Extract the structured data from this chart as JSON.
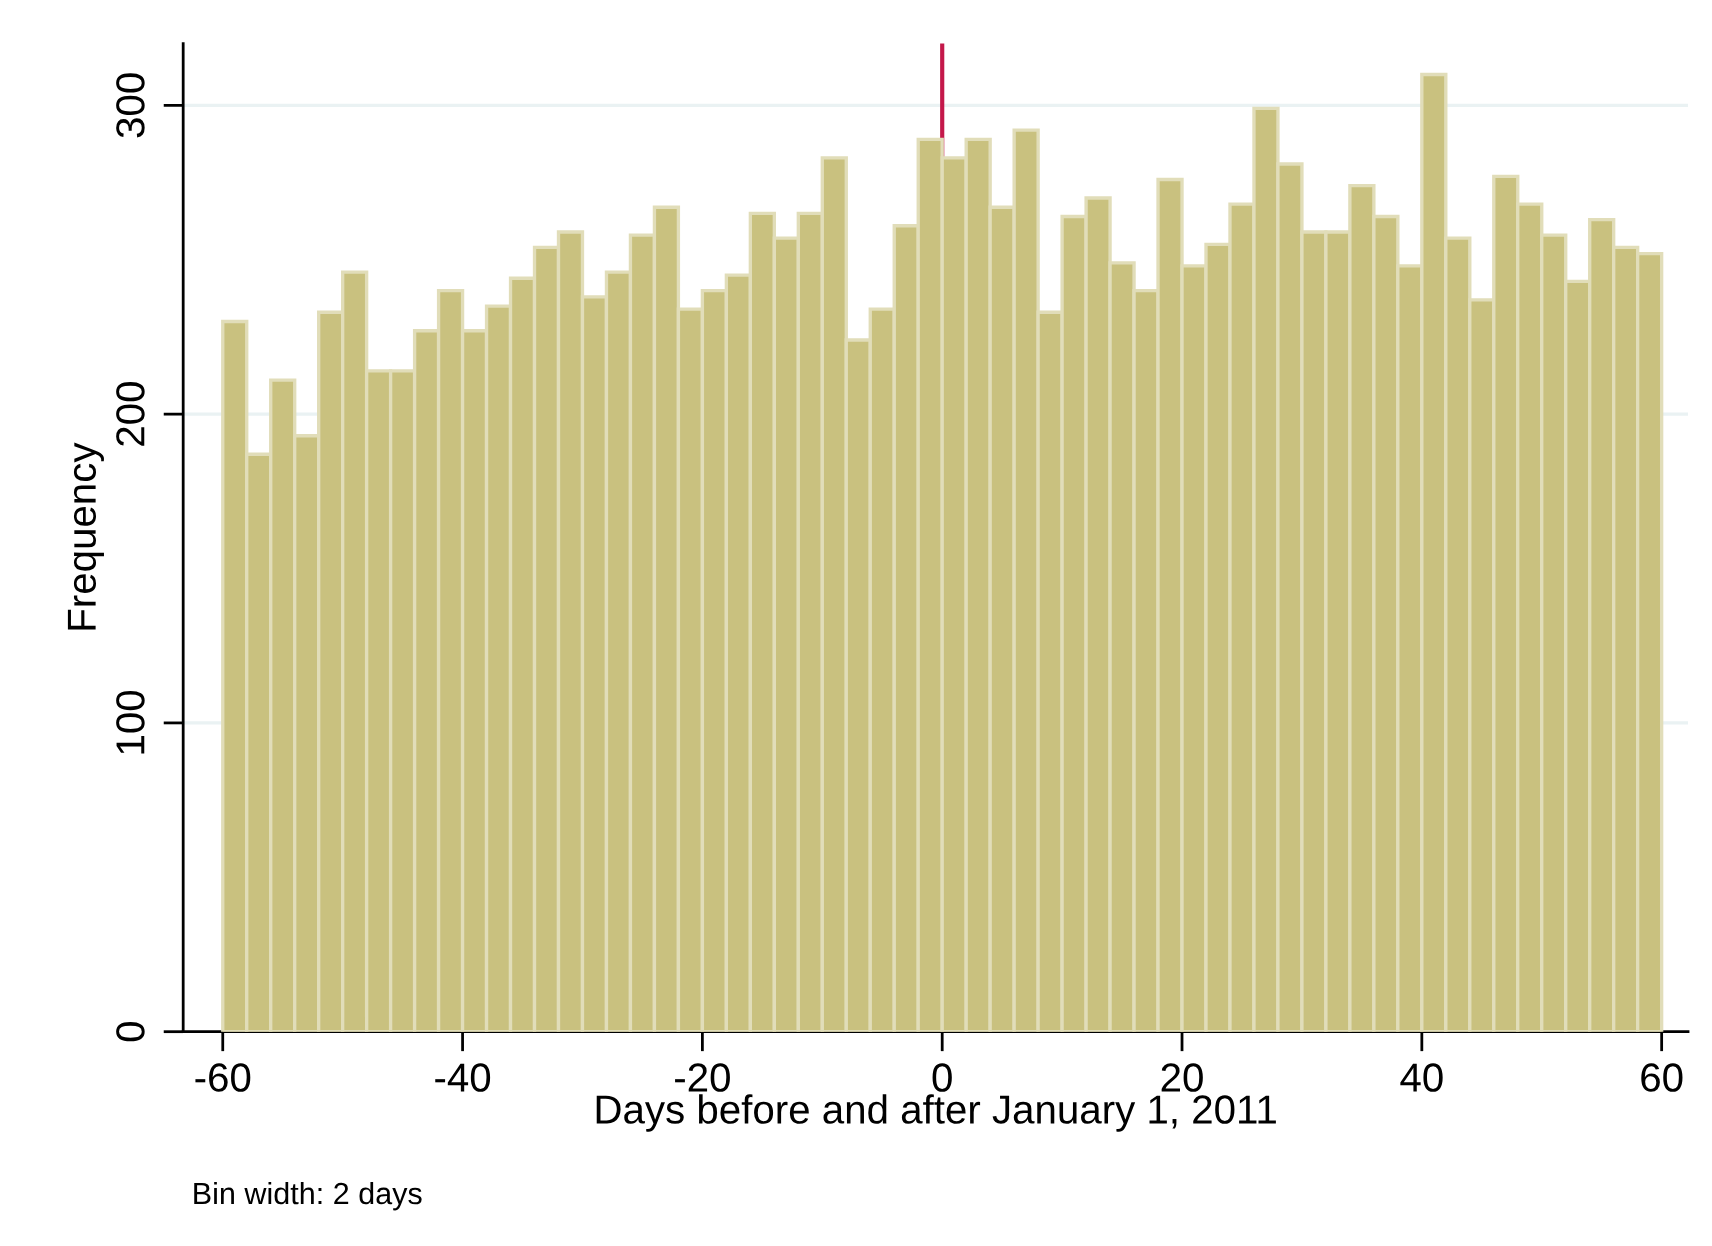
{
  "chart_data": {
    "type": "histogram",
    "xlabel": "Days before and after January 1, 2011",
    "ylabel": "Frequency",
    "annotations": [
      "Bin width: 2 days"
    ],
    "bins": [
      -60,
      -58,
      -56,
      -54,
      -52,
      -50,
      -48,
      -46,
      -44,
      -42,
      -40,
      -38,
      -36,
      -34,
      -32,
      -30,
      -28,
      -26,
      -24,
      -22,
      -20,
      -18,
      -16,
      -14,
      -12,
      -10,
      -8,
      -6,
      -4,
      -2,
      0,
      2,
      4,
      6,
      8,
      10,
      12,
      14,
      16,
      18,
      20,
      22,
      24,
      26,
      28,
      30,
      32,
      34,
      36,
      38,
      40,
      42,
      44,
      46,
      48,
      50,
      52,
      54,
      56,
      58,
      60
    ],
    "values": [
      230,
      187,
      211,
      193,
      233,
      246,
      214,
      214,
      227,
      240,
      227,
      235,
      244,
      254,
      259,
      238,
      246,
      258,
      267,
      234,
      240,
      245,
      265,
      257,
      265,
      283,
      224,
      234,
      261,
      289,
      283,
      289,
      267,
      292,
      233,
      264,
      270,
      249,
      240,
      276,
      248,
      255,
      268,
      299,
      281,
      259,
      259,
      274,
      264,
      248,
      310,
      257,
      237,
      277,
      268,
      258,
      243,
      263,
      254,
      252
    ],
    "color": "#c9c17f",
    "xlim": [
      -63.3,
      62.2
    ],
    "ylim": [
      0,
      320
    ],
    "xticks": [
      -60,
      -40,
      -20,
      0,
      20,
      40,
      60
    ],
    "yticks": [
      0,
      100,
      200,
      300
    ],
    "grid": "y",
    "ref_lines": [
      {
        "axis": "x",
        "value": 0,
        "color": "#c4184a"
      }
    ]
  }
}
